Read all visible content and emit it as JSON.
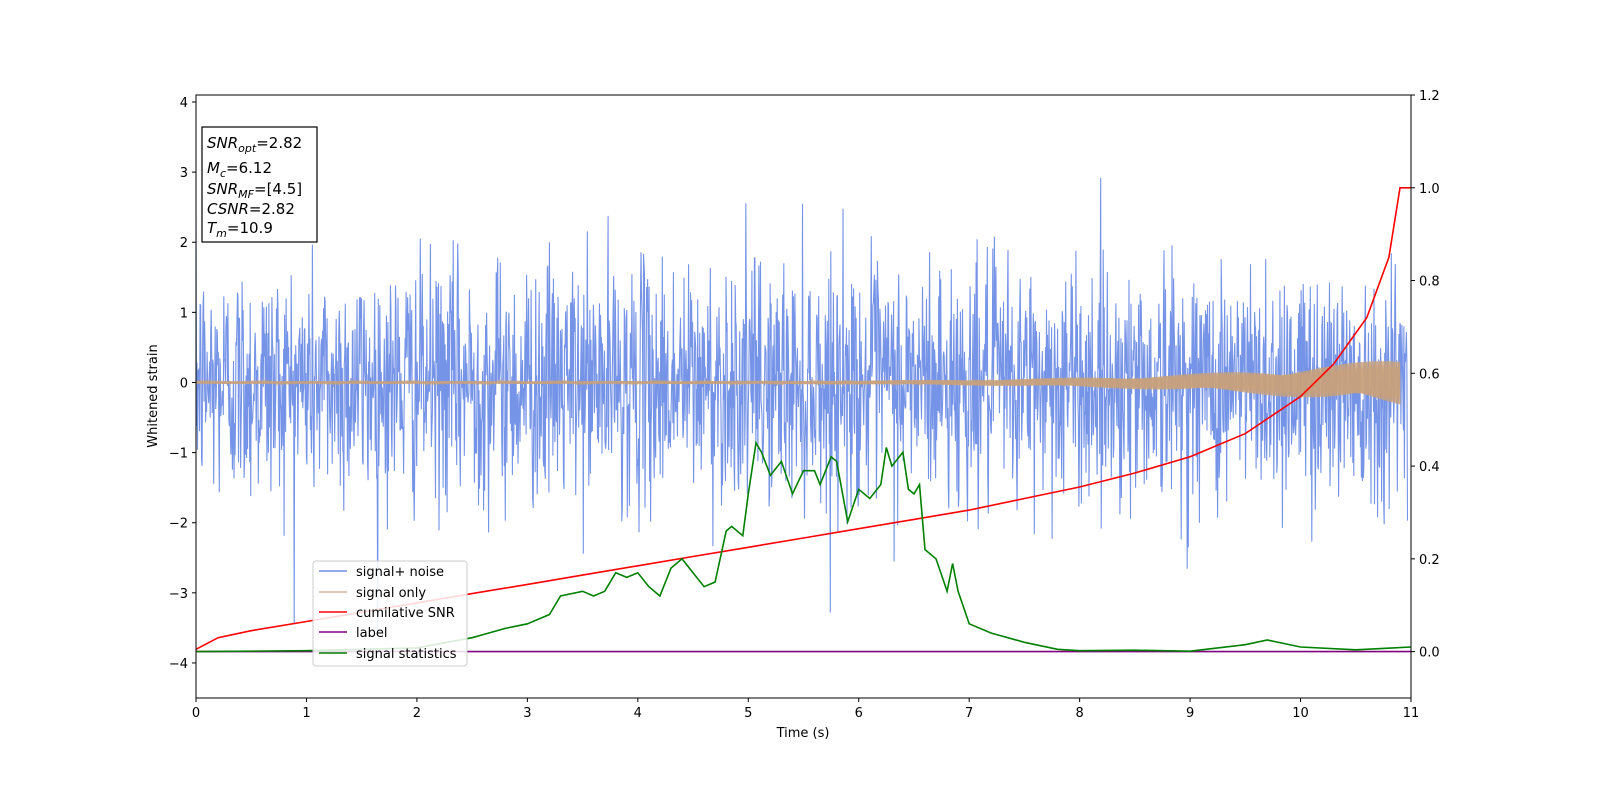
{
  "chart_data": {
    "type": "line",
    "xlabel": "Time (s)",
    "ylabel": "Whitened strain",
    "xlim": [
      0,
      11
    ],
    "ylim_left": [
      -4.5,
      4.1
    ],
    "ylim_right": [
      -0.1,
      1.2
    ],
    "x_ticks": [
      0,
      1,
      2,
      3,
      4,
      5,
      6,
      7,
      8,
      9,
      10,
      11
    ],
    "y_ticks_left": [
      -4,
      -3,
      -2,
      -1,
      0,
      1,
      2,
      3,
      4
    ],
    "y_ticks_right": [
      "0.0",
      "0.2",
      "0.4",
      "0.6",
      "0.8",
      "1.0",
      "1.2"
    ],
    "grid": false,
    "legend_position": "lower-left",
    "info_box": {
      "snr_opt": {
        "sym": "SNR",
        "sub": "opt",
        "value": "=2.82"
      },
      "mc": {
        "sym": "M",
        "sub": "c",
        "value": "=6.12"
      },
      "snr_mf": {
        "sym": "SNR",
        "sub": "MF",
        "value": "=[4.5]"
      },
      "csnr": {
        "sym": "CSNR",
        "value": "=2.82"
      },
      "tm": {
        "sym": "T",
        "sub": "m",
        "value": "=10.9"
      }
    },
    "series": [
      {
        "name": "signal+ noise",
        "axis": "left",
        "color": "#6f8ee6",
        "kind": "noise",
        "std": 0.85,
        "range_approx": [
          -4.2,
          3.7
        ]
      },
      {
        "name": "signal only",
        "axis": "left",
        "color": "#c8a07a",
        "kind": "chirp",
        "amplitude_start": 0.02,
        "amplitude_end": 0.35,
        "t_merger": 10.9
      },
      {
        "name": "cumilative SNR",
        "axis": "right",
        "color": "#ff0000",
        "x": [
          0,
          0.2,
          0.5,
          1,
          1.5,
          2,
          2.5,
          3,
          3.5,
          4,
          4.5,
          5,
          5.5,
          6,
          6.5,
          7,
          7.5,
          8,
          8.5,
          9,
          9.5,
          10,
          10.3,
          10.6,
          10.8,
          10.9,
          11
        ],
        "y": [
          0.005,
          0.03,
          0.045,
          0.065,
          0.085,
          0.105,
          0.125,
          0.145,
          0.165,
          0.185,
          0.205,
          0.225,
          0.245,
          0.265,
          0.285,
          0.305,
          0.33,
          0.355,
          0.385,
          0.42,
          0.47,
          0.55,
          0.62,
          0.72,
          0.85,
          1.0,
          1.0
        ]
      },
      {
        "name": "label",
        "axis": "right",
        "color": "#800080",
        "x": [
          0,
          11
        ],
        "y": [
          0,
          0
        ]
      },
      {
        "name": "signal statistics",
        "axis": "right",
        "color": "#008000",
        "x": [
          0,
          1,
          2,
          2.5,
          2.8,
          3.0,
          3.2,
          3.3,
          3.5,
          3.6,
          3.7,
          3.8,
          3.9,
          4.0,
          4.1,
          4.2,
          4.3,
          4.4,
          4.5,
          4.6,
          4.7,
          4.8,
          4.85,
          4.95,
          5.0,
          5.07,
          5.12,
          5.2,
          5.3,
          5.4,
          5.5,
          5.6,
          5.65,
          5.75,
          5.8,
          5.9,
          6.0,
          6.1,
          6.2,
          6.25,
          6.3,
          6.4,
          6.45,
          6.5,
          6.55,
          6.6,
          6.7,
          6.8,
          6.85,
          6.9,
          7.0,
          7.2,
          7.5,
          7.8,
          8.0,
          8.5,
          9.0,
          9.5,
          9.7,
          10.0,
          10.5,
          11.0
        ],
        "y": [
          0,
          0.002,
          0.008,
          0.03,
          0.05,
          0.06,
          0.08,
          0.12,
          0.13,
          0.12,
          0.13,
          0.17,
          0.16,
          0.17,
          0.14,
          0.12,
          0.18,
          0.2,
          0.17,
          0.14,
          0.15,
          0.26,
          0.27,
          0.25,
          0.34,
          0.45,
          0.43,
          0.38,
          0.41,
          0.34,
          0.39,
          0.39,
          0.36,
          0.42,
          0.41,
          0.28,
          0.35,
          0.33,
          0.36,
          0.44,
          0.4,
          0.43,
          0.35,
          0.34,
          0.36,
          0.22,
          0.2,
          0.13,
          0.19,
          0.13,
          0.06,
          0.04,
          0.02,
          0.005,
          0.002,
          0.003,
          0.001,
          0.015,
          0.025,
          0.01,
          0.004,
          0.01
        ]
      }
    ]
  }
}
